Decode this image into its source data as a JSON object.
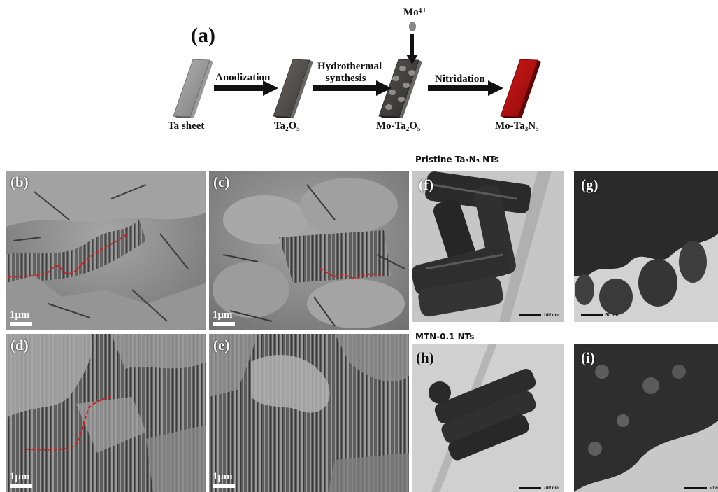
{
  "schematic": {
    "label": "(a)",
    "ion": "Mo⁴⁺",
    "steps": [
      {
        "sample": "Ta sheet",
        "color": "#8c8c8c"
      },
      {
        "sample": "Ta₂O₅",
        "color": "#4e4a48"
      },
      {
        "sample": "Mo-Ta₂O₅",
        "color": "#3e3a3a"
      },
      {
        "sample": "Mo-Ta₃N₅",
        "color": "#b41010"
      }
    ],
    "arrows": [
      {
        "line1": "Anodization",
        "line2": ""
      },
      {
        "line1": "Hydrothermal",
        "line2": "synthesis"
      },
      {
        "line1": "Nitridation",
        "line2": ""
      }
    ]
  },
  "sem_panels": [
    {
      "label": "(b)",
      "scale": "1μm"
    },
    {
      "label": "(c)",
      "scale": "1μm"
    },
    {
      "label": "(d)",
      "scale": "1μm"
    },
    {
      "label": "(e)",
      "scale": "1μm"
    }
  ],
  "tem_groups": [
    {
      "title": "Pristine Ta₃N₅ NTs"
    },
    {
      "title": "MTN-0.1 NTs"
    }
  ],
  "tem_panels": [
    {
      "label": "(f)",
      "scale": "100 nm"
    },
    {
      "label": "(g)",
      "scale": "50 nm"
    },
    {
      "label": "(h)",
      "scale": "100 nm"
    },
    {
      "label": "(i)",
      "scale": "50 n"
    }
  ]
}
